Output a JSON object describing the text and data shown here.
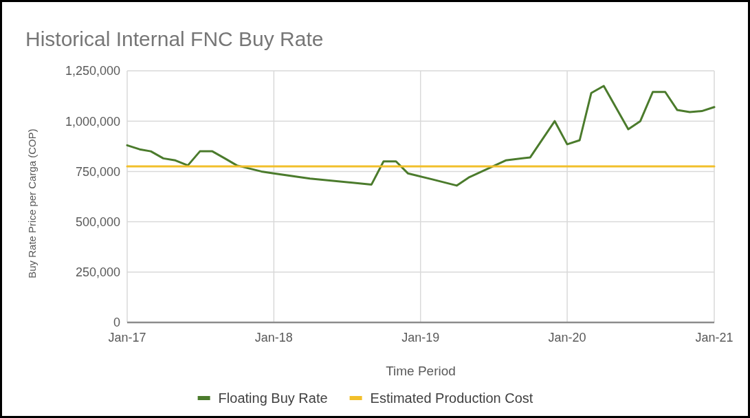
{
  "chart_data": {
    "type": "line",
    "title": "Historical Internal FNC Buy Rate",
    "xlabel": "Time Period",
    "ylabel": "Buy Rate Price per Carga (COP)",
    "xlim": [
      "2017-01",
      "2021-01"
    ],
    "xticks": [
      {
        "value": "2017-01",
        "label": "Jan-17"
      },
      {
        "value": "2018-01",
        "label": "Jan-18"
      },
      {
        "value": "2019-01",
        "label": "Jan-19"
      },
      {
        "value": "2020-01",
        "label": "Jan-20"
      },
      {
        "value": "2021-01",
        "label": "Jan-21"
      }
    ],
    "ylim": [
      0,
      1250000
    ],
    "yticks": [
      {
        "value": 0,
        "label": "0"
      },
      {
        "value": 250000,
        "label": "250,000"
      },
      {
        "value": 500000,
        "label": "500,000"
      },
      {
        "value": 750000,
        "label": "750,000"
      },
      {
        "value": 1000000,
        "label": "1,000,000"
      },
      {
        "value": 1250000,
        "label": "1,250,000"
      }
    ],
    "grid": true,
    "legend": "bottom",
    "line_style": "solid",
    "series": [
      {
        "name": "Floating Buy Rate",
        "color": "#4b7b2c",
        "x": [
          "2017-01",
          "2017-02",
          "2017-03",
          "2017-04",
          "2017-05",
          "2017-06",
          "2017-07",
          "2017-08",
          "2017-09",
          "2017-10",
          "2017-12",
          "2018-01",
          "2018-04",
          "2018-09",
          "2018-10",
          "2018-11",
          "2018-12",
          "2019-02",
          "2019-04",
          "2019-05",
          "2019-08",
          "2019-10",
          "2019-12",
          "2020-01",
          "2020-02",
          "2020-03",
          "2020-04",
          "2020-06",
          "2020-07",
          "2020-08",
          "2020-09",
          "2020-10",
          "2020-11",
          "2020-12",
          "2021-01"
        ],
        "values": [
          880000,
          860000,
          850000,
          815000,
          805000,
          780000,
          850000,
          850000,
          815000,
          780000,
          750000,
          740000,
          715000,
          685000,
          800000,
          800000,
          740000,
          710000,
          680000,
          720000,
          805000,
          820000,
          1000000,
          885000,
          905000,
          1140000,
          1175000,
          960000,
          1000000,
          1145000,
          1145000,
          1055000,
          1045000,
          1050000,
          1070000
        ]
      },
      {
        "name": "Estimated Production Cost",
        "color": "#f2bf2a",
        "x": [
          "2017-01",
          "2021-01"
        ],
        "values": [
          775000,
          775000
        ]
      }
    ]
  }
}
